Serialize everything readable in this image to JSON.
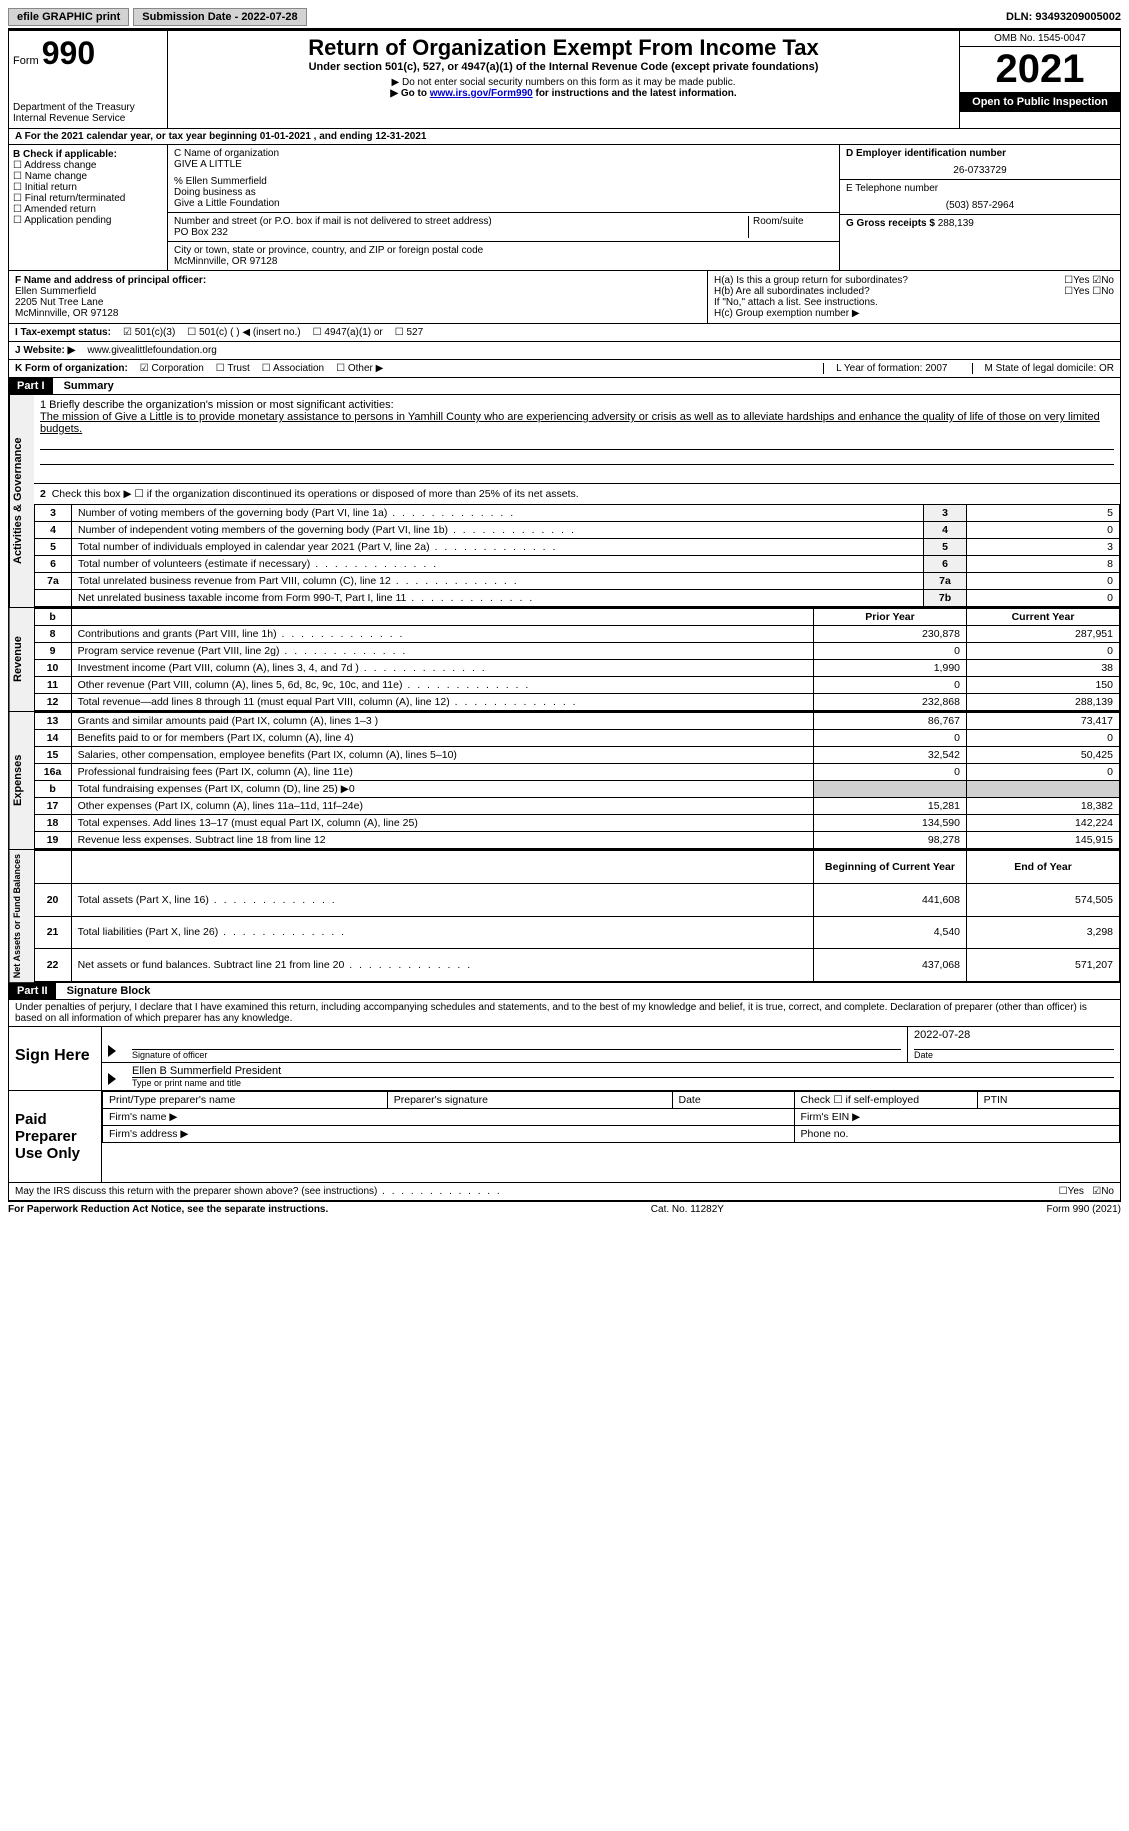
{
  "topbar": {
    "efile": "efile GRAPHIC print",
    "submission": "Submission Date - 2022-07-28",
    "dln": "DLN: 93493209005002"
  },
  "header": {
    "form_word": "Form",
    "form_no": "990",
    "dept": "Department of the Treasury Internal Revenue Service",
    "title": "Return of Organization Exempt From Income Tax",
    "subtitle": "Under section 501(c), 527, or 4947(a)(1) of the Internal Revenue Code (except private foundations)",
    "note1": "▶ Do not enter social security numbers on this form as it may be made public.",
    "note2_pre": "▶ Go to ",
    "note2_link": "www.irs.gov/Form990",
    "note2_post": " for instructions and the latest information.",
    "omb": "OMB No. 1545-0047",
    "year": "2021",
    "inspection": "Open to Public Inspection"
  },
  "periodA": "A For the 2021 calendar year, or tax year beginning 01-01-2021    , and ending 12-31-2021",
  "sectionB": {
    "label": "B Check if applicable:",
    "opts": [
      "Address change",
      "Name change",
      "Initial return",
      "Final return/terminated",
      "Amended return",
      "Application pending"
    ]
  },
  "sectionC": {
    "name_label": "C Name of organization",
    "name": "GIVE A LITTLE",
    "care_of": "% Ellen Summerfield",
    "dba_label": "Doing business as",
    "dba": "Give a Little Foundation",
    "street_label": "Number and street (or P.O. box if mail is not delivered to street address)",
    "room_label": "Room/suite",
    "street": "PO Box 232",
    "city_label": "City or town, state or province, country, and ZIP or foreign postal code",
    "city": "McMinnville, OR  97128"
  },
  "sectionD": {
    "label": "D Employer identification number",
    "value": "26-0733729"
  },
  "sectionE": {
    "label": "E Telephone number",
    "value": "(503) 857-2964"
  },
  "sectionG": {
    "label": "G Gross receipts $",
    "value": "288,139"
  },
  "officerF": {
    "label": "F Name and address of principal officer:",
    "name": "Ellen Summerfield",
    "addr1": "2205 Nut Tree Lane",
    "addr2": "McMinnville, OR  97128"
  },
  "sectionH": {
    "ha": "H(a)  Is this a group return for subordinates?",
    "hb": "H(b)  Are all subordinates included?",
    "hb_note": "If \"No,\" attach a list. See instructions.",
    "hc": "H(c)  Group exemption number ▶",
    "yes": "Yes",
    "no": "No"
  },
  "taxExempt": {
    "label": "I   Tax-exempt status:",
    "o1": "501(c)(3)",
    "o2": "501(c) (  ) ◀ (insert no.)",
    "o3": "4947(a)(1) or",
    "o4": "527"
  },
  "website": {
    "label": "J   Website: ▶",
    "value": "www.givealittlefoundation.org"
  },
  "formOrg": {
    "label": "K Form of organization:",
    "o1": "Corporation",
    "o2": "Trust",
    "o3": "Association",
    "o4": "Other ▶",
    "yearL": "L Year of formation: 2007",
    "stateM": "M State of legal domicile: OR"
  },
  "part1": {
    "header": "Part I",
    "title": "Summary"
  },
  "mission": {
    "label": "1  Briefly describe the organization's mission or most significant activities:",
    "text": "The mission of Give a Little is to provide monetary assistance to persons in Yamhill County who are experiencing adversity or crisis as well as to alleviate hardships and enhance the quality of life of those on very limited budgets."
  },
  "governance": {
    "l2": "Check this box ▶ ☐  if the organization discontinued its operations or disposed of more than 25% of its net assets.",
    "rows": [
      {
        "n": "3",
        "t": "Number of voting members of the governing body (Part VI, line 1a)",
        "b": "3",
        "v": "5"
      },
      {
        "n": "4",
        "t": "Number of independent voting members of the governing body (Part VI, line 1b)",
        "b": "4",
        "v": "0"
      },
      {
        "n": "5",
        "t": "Total number of individuals employed in calendar year 2021 (Part V, line 2a)",
        "b": "5",
        "v": "3"
      },
      {
        "n": "6",
        "t": "Total number of volunteers (estimate if necessary)",
        "b": "6",
        "v": "8"
      },
      {
        "n": "7a",
        "t": "Total unrelated business revenue from Part VIII, column (C), line 12",
        "b": "7a",
        "v": "0"
      },
      {
        "n": "",
        "t": "Net unrelated business taxable income from Form 990-T, Part I, line 11",
        "b": "7b",
        "v": "0"
      }
    ]
  },
  "revExpHeader": {
    "b": "b",
    "prior": "Prior Year",
    "current": "Current Year"
  },
  "revenue": [
    {
      "n": "8",
      "t": "Contributions and grants (Part VIII, line 1h)",
      "p": "230,878",
      "c": "287,951"
    },
    {
      "n": "9",
      "t": "Program service revenue (Part VIII, line 2g)",
      "p": "0",
      "c": "0"
    },
    {
      "n": "10",
      "t": "Investment income (Part VIII, column (A), lines 3, 4, and 7d )",
      "p": "1,990",
      "c": "38"
    },
    {
      "n": "11",
      "t": "Other revenue (Part VIII, column (A), lines 5, 6d, 8c, 9c, 10c, and 11e)",
      "p": "0",
      "c": "150"
    },
    {
      "n": "12",
      "t": "Total revenue—add lines 8 through 11 (must equal Part VIII, column (A), line 12)",
      "p": "232,868",
      "c": "288,139"
    }
  ],
  "expenses": [
    {
      "n": "13",
      "t": "Grants and similar amounts paid (Part IX, column (A), lines 1–3 )",
      "p": "86,767",
      "c": "73,417"
    },
    {
      "n": "14",
      "t": "Benefits paid to or for members (Part IX, column (A), line 4)",
      "p": "0",
      "c": "0"
    },
    {
      "n": "15",
      "t": "Salaries, other compensation, employee benefits (Part IX, column (A), lines 5–10)",
      "p": "32,542",
      "c": "50,425"
    },
    {
      "n": "16a",
      "t": "Professional fundraising fees (Part IX, column (A), line 11e)",
      "p": "0",
      "c": "0"
    },
    {
      "n": "b",
      "t": "Total fundraising expenses (Part IX, column (D), line 25) ▶0",
      "p": "",
      "c": "",
      "gray": true
    },
    {
      "n": "17",
      "t": "Other expenses (Part IX, column (A), lines 11a–11d, 11f–24e)",
      "p": "15,281",
      "c": "18,382"
    },
    {
      "n": "18",
      "t": "Total expenses. Add lines 13–17 (must equal Part IX, column (A), line 25)",
      "p": "134,590",
      "c": "142,224"
    },
    {
      "n": "19",
      "t": "Revenue less expenses. Subtract line 18 from line 12",
      "p": "98,278",
      "c": "145,915"
    }
  ],
  "netHeader": {
    "begin": "Beginning of Current Year",
    "end": "End of Year"
  },
  "netassets": [
    {
      "n": "20",
      "t": "Total assets (Part X, line 16)",
      "p": "441,608",
      "c": "574,505"
    },
    {
      "n": "21",
      "t": "Total liabilities (Part X, line 26)",
      "p": "4,540",
      "c": "3,298"
    },
    {
      "n": "22",
      "t": "Net assets or fund balances. Subtract line 21 from line 20",
      "p": "437,068",
      "c": "571,207"
    }
  ],
  "vlabels": {
    "gov": "Activities & Governance",
    "rev": "Revenue",
    "exp": "Expenses",
    "net": "Net Assets or Fund Balances"
  },
  "part2": {
    "header": "Part II",
    "title": "Signature Block"
  },
  "sigDecl": "Under penalties of perjury, I declare that I have examined this return, including accompanying schedules and statements, and to the best of my knowledge and belief, it is true, correct, and complete. Declaration of preparer (other than officer) is based on all information of which preparer has any knowledge.",
  "sign": {
    "here": "Sign Here",
    "date": "2022-07-28",
    "sig_label": "Signature of officer",
    "date_label": "Date",
    "name": "Ellen B Summerfield  President",
    "name_label": "Type or print name and title"
  },
  "preparer": {
    "left": "Paid Preparer Use Only",
    "h1": "Print/Type preparer's name",
    "h2": "Preparer's signature",
    "h3": "Date",
    "h4_pre": "Check ☐ if self-employed",
    "h5": "PTIN",
    "firm": "Firm's name    ▶",
    "ein": "Firm's EIN ▶",
    "addr": "Firm's address ▶",
    "phone": "Phone no."
  },
  "discuss": {
    "text": "May the IRS discuss this return with the preparer shown above? (see instructions)",
    "yes": "Yes",
    "no": "No"
  },
  "footer": {
    "left": "For Paperwork Reduction Act Notice, see the separate instructions.",
    "mid": "Cat. No. 11282Y",
    "right": "Form 990 (2021)"
  }
}
